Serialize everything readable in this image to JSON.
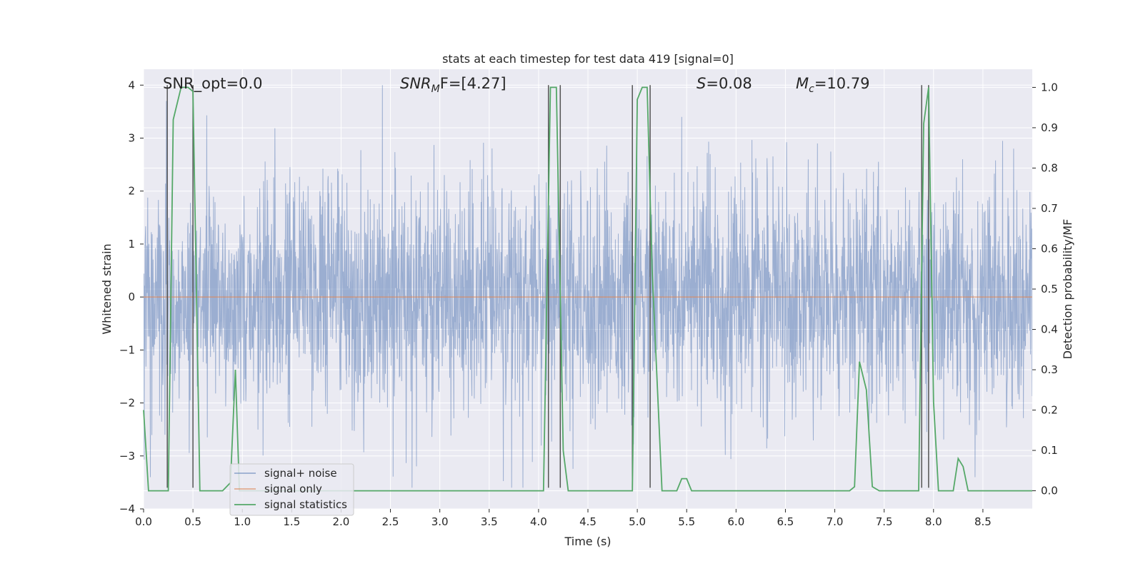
{
  "chart_data": {
    "type": "line",
    "title": "stats at each timestep for test data 419 [signal=0]",
    "xlabel": "Time (s)",
    "ylabel": "Whitened strain",
    "ylabel_right": "Detection probability/MF",
    "xlim": [
      0,
      9
    ],
    "ylim": [
      -4,
      4.3
    ],
    "ylim_right": [
      -0.045,
      1.045
    ],
    "grid": true,
    "legend_position": "lower-left",
    "x_ticks": [
      "0.0",
      "0.5",
      "1.0",
      "1.5",
      "2.0",
      "2.5",
      "3.0",
      "3.5",
      "4.0",
      "4.5",
      "5.0",
      "5.5",
      "6.0",
      "6.5",
      "7.0",
      "7.5",
      "8.0",
      "8.5"
    ],
    "y_ticks": [
      "4",
      "3",
      "2",
      "1",
      "0",
      "−1",
      "−2",
      "−3",
      "−4"
    ],
    "y_ticks_right": [
      "1.0",
      "0.9",
      "0.8",
      "0.7",
      "0.6",
      "0.5",
      "0.4",
      "0.3",
      "0.2",
      "0.1",
      "0.0"
    ],
    "annotations": {
      "snr_opt": "SNR_opt=0.0",
      "snr_mf_prefix": "SNR",
      "snr_mf_sub": "M",
      "snr_mf_suffix": "F=[4.27]",
      "s_prefix": "S",
      "s_suffix": "=0.08",
      "mc_prefix": "M",
      "mc_sub": "c",
      "mc_suffix": "=10.79"
    },
    "series": [
      {
        "name": "signal+ noise",
        "color": "#4c72b0",
        "alpha": 0.5,
        "description": "whitened noisy strain, approx. within ±2.5 with peaks to about 4.0 and -3.6",
        "peaks": [
          {
            "x": 0.23,
            "y": 3.7
          },
          {
            "x": 2.42,
            "y": 4.0
          },
          {
            "x": 0.07,
            "y": -3.4
          },
          {
            "x": 3.84,
            "y": -3.6
          },
          {
            "x": 5.45,
            "y": 3.4
          },
          {
            "x": 8.42,
            "y": -3.4
          }
        ]
      },
      {
        "name": "signal only",
        "color": "#dd8452",
        "x": [
          0,
          9
        ],
        "values": [
          0,
          0
        ]
      },
      {
        "name": "signal statistics",
        "color": "#55a868",
        "axis": "right",
        "x": [
          0.0,
          0.05,
          0.25,
          0.3,
          0.38,
          0.45,
          0.5,
          0.57,
          0.8,
          0.88,
          0.93,
          0.97,
          1.03,
          2.2,
          2.3,
          4.0,
          4.05,
          4.12,
          4.18,
          4.25,
          4.3,
          4.95,
          5.0,
          5.05,
          5.1,
          5.15,
          5.25,
          5.4,
          5.45,
          5.5,
          5.55,
          5.7,
          7.15,
          7.2,
          7.25,
          7.32,
          7.38,
          7.45,
          7.85,
          7.9,
          7.95,
          8.0,
          8.05,
          8.15,
          8.2,
          8.25,
          8.3,
          8.35,
          8.45,
          9.0
        ],
        "values": [
          0.2,
          0.0,
          0.0,
          0.92,
          1.0,
          1.0,
          0.99,
          0.0,
          0.0,
          0.02,
          0.3,
          0.0,
          0.0,
          0.0,
          0.0,
          0.0,
          0.0,
          1.0,
          1.0,
          0.1,
          0.0,
          0.0,
          0.97,
          1.0,
          1.0,
          0.55,
          0.0,
          0.0,
          0.03,
          0.03,
          0.0,
          0.0,
          0.0,
          0.01,
          0.32,
          0.25,
          0.01,
          0.0,
          0.0,
          0.91,
          1.0,
          0.22,
          0.0,
          0.0,
          0.0,
          0.08,
          0.06,
          0.0,
          0.0,
          0.0
        ]
      }
    ],
    "markers": {
      "color": "#555555",
      "x": [
        0.24,
        0.5,
        4.1,
        4.22,
        4.95,
        5.13,
        7.88,
        7.95
      ],
      "description": "vertical event markers spanning y from -3.6 to 4.0"
    }
  }
}
